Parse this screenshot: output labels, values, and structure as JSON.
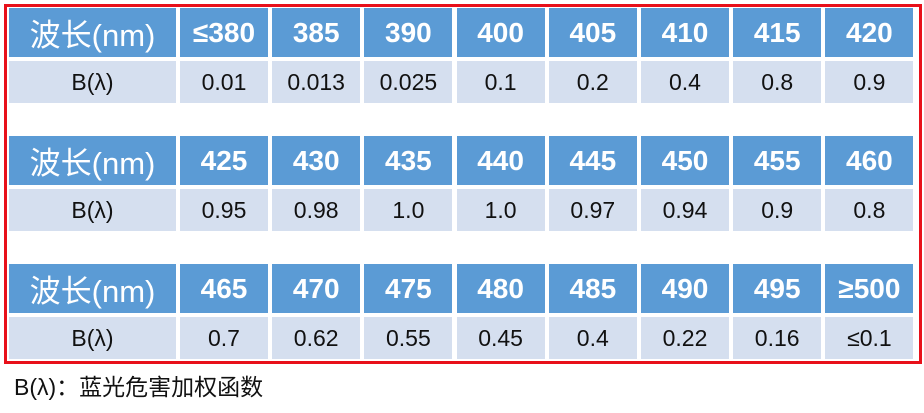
{
  "blocks": [
    {
      "header": "波长(nm)",
      "wavelengths": [
        "≤380",
        "385",
        "390",
        "400",
        "405",
        "410",
        "415",
        "420"
      ],
      "label": "B(λ)",
      "values": [
        "0.01",
        "0.013",
        "0.025",
        "0.1",
        "0.2",
        "0.4",
        "0.8",
        "0.9"
      ]
    },
    {
      "header": "波长(nm)",
      "wavelengths": [
        "425",
        "430",
        "435",
        "440",
        "445",
        "450",
        "455",
        "460"
      ],
      "label": "B(λ)",
      "values": [
        "0.95",
        "0.98",
        "1.0",
        "1.0",
        "0.97",
        "0.94",
        "0.9",
        "0.8"
      ]
    },
    {
      "header": "波长(nm)",
      "wavelengths": [
        "465",
        "470",
        "475",
        "480",
        "485",
        "490",
        "495",
        "≥500"
      ],
      "label": "B(λ)",
      "values": [
        "0.7",
        "0.62",
        "0.55",
        "0.45",
        "0.4",
        "0.22",
        "0.16",
        "≤0.1"
      ]
    }
  ],
  "footnote": "B(λ)：蓝光危害加权函数"
}
